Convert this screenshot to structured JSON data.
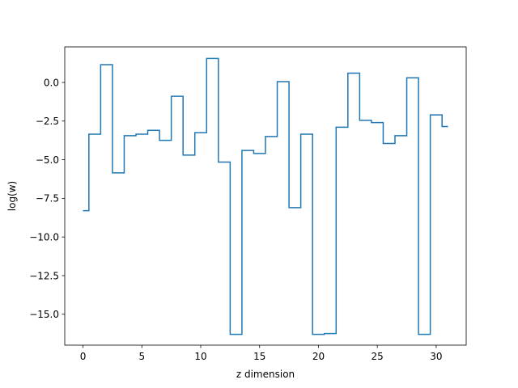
{
  "chart_data": {
    "type": "line",
    "drawstyle": "steps-mid",
    "title": "",
    "xlabel": "z dimension",
    "ylabel": "log(w)",
    "xlim": [
      -1.55,
      32.55
    ],
    "ylim": [
      -17.0,
      2.3
    ],
    "xticks": [
      0,
      5,
      10,
      15,
      20,
      25,
      30
    ],
    "yticks": [
      0.0,
      -2.5,
      -5.0,
      -7.5,
      -10.0,
      -12.5,
      -15.0
    ],
    "xtick_labels": [
      "0",
      "5",
      "10",
      "15",
      "20",
      "25",
      "30"
    ],
    "ytick_labels": [
      "0.0",
      "−2.5",
      "−5.0",
      "−7.5",
      "−10.0",
      "−12.5",
      "−15.0"
    ],
    "grid": false,
    "legend": "none",
    "line_color": "#1f77b4",
    "series": [
      {
        "x": [
          0,
          1,
          2,
          3,
          4,
          5,
          6,
          7,
          8,
          9,
          10,
          11,
          12,
          13,
          14,
          15,
          16,
          17,
          18,
          19,
          20,
          21,
          22,
          23,
          24,
          25,
          26,
          27,
          28,
          29,
          30,
          31
        ],
        "values": [
          -8.3,
          -3.35,
          1.15,
          -5.85,
          -3.45,
          -3.35,
          -3.1,
          -3.75,
          -0.9,
          -4.7,
          -3.25,
          1.55,
          -5.15,
          -16.3,
          -4.4,
          -4.6,
          -3.5,
          0.05,
          -8.1,
          -3.35,
          -16.3,
          -16.25,
          -2.9,
          0.6,
          -2.45,
          -2.6,
          -3.95,
          -3.45,
          0.3,
          -16.3,
          -2.1,
          -2.85
        ]
      }
    ]
  }
}
